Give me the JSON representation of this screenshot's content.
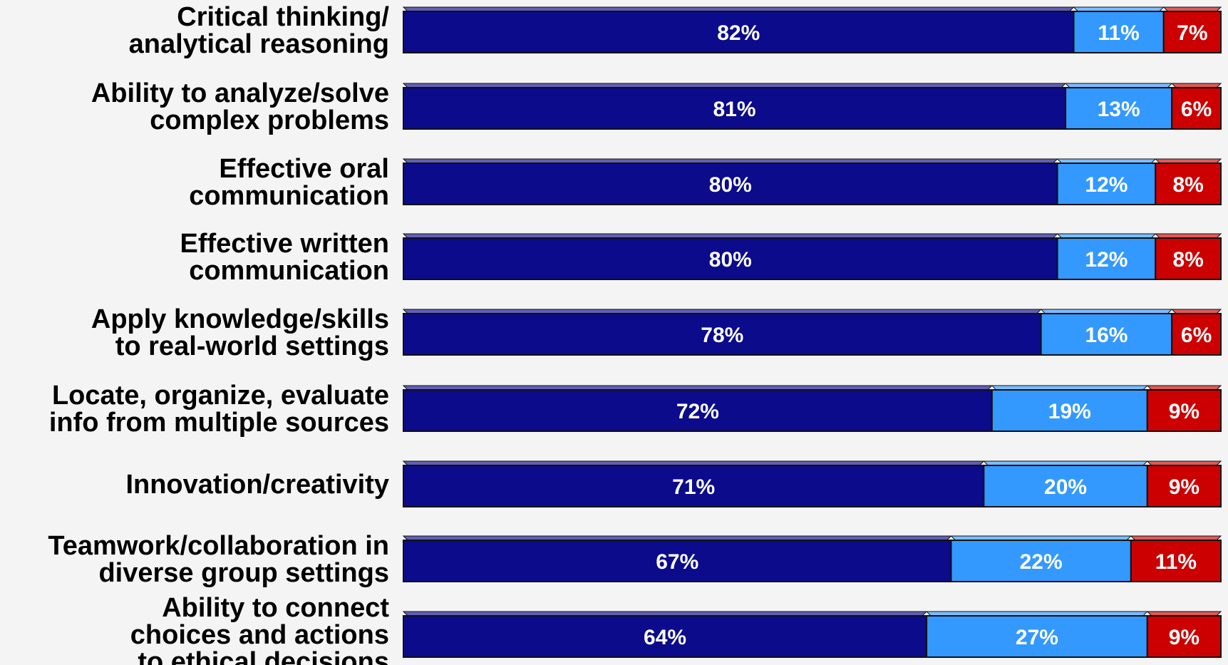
{
  "chart_data": {
    "type": "bar",
    "orientation": "horizontal",
    "stacked": true,
    "normalized": true,
    "grid": false,
    "legend": "none",
    "categories": [
      [
        "Critical thinking/",
        "analytical reasoning"
      ],
      [
        "Ability to analyze/solve",
        "complex problems"
      ],
      [
        "Effective oral",
        "communication"
      ],
      [
        "Effective written",
        "communication"
      ],
      [
        "Apply knowledge/skills",
        "to real-world settings"
      ],
      [
        "Locate, organize, evaluate",
        "info from multiple sources"
      ],
      [
        "Innovation/creativity"
      ],
      [
        "Teamwork/collaboration in",
        "diverse group settings"
      ],
      [
        "Ability to connect",
        "choices and actions",
        "to ethical decisions"
      ]
    ],
    "series": [
      {
        "values": [
          82,
          81,
          80,
          80,
          78,
          72,
          71,
          67,
          64
        ],
        "color": "#0b0b8c"
      },
      {
        "values": [
          11,
          13,
          12,
          12,
          16,
          19,
          20,
          22,
          27
        ],
        "color": "#3399ff"
      },
      {
        "values": [
          7,
          6,
          8,
          8,
          6,
          9,
          9,
          11,
          9
        ],
        "color": "#cc0000"
      }
    ],
    "value_suffix": "%",
    "colors": {
      "edge": "#111111",
      "background": "#f4f4f4"
    }
  }
}
